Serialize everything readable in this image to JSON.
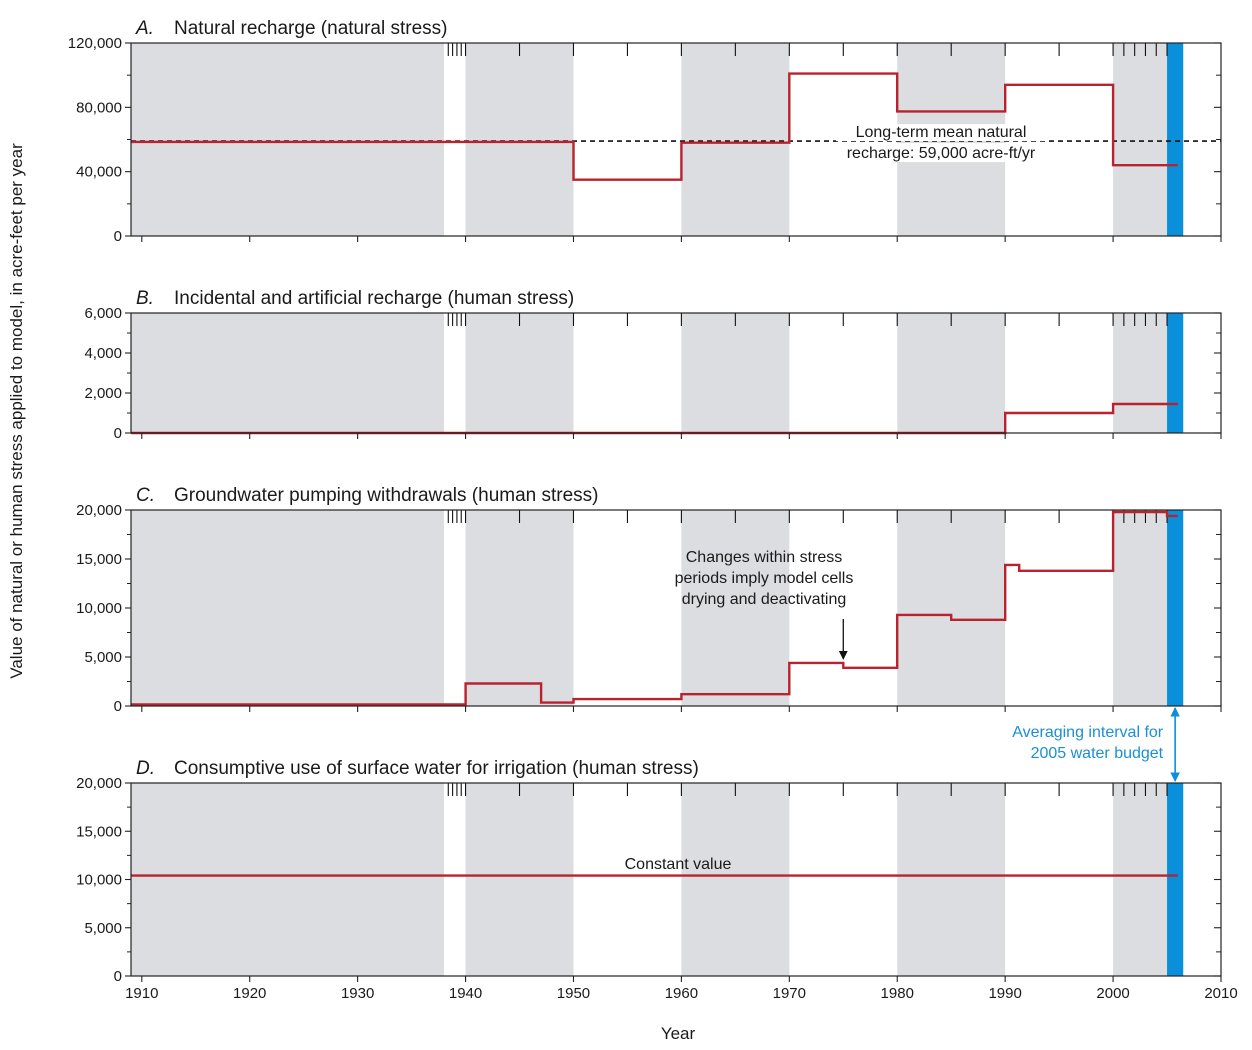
{
  "figure": {
    "ylabel": "Value of natural or human stress applied to model, in acre-feet per year",
    "xlabel": "Year",
    "x_ticks": [
      1910,
      1920,
      1930,
      1940,
      1950,
      1960,
      1970,
      1980,
      1990,
      2000,
      2010
    ],
    "xlim": [
      1909,
      2010
    ]
  },
  "colors": {
    "shade": "#dcdde0",
    "series": "#b8232f",
    "highlight": "#0a8fdb",
    "highlight_text": "#1b8fd2",
    "axis": "#222222"
  },
  "shaded_periods": [
    [
      1909,
      1938
    ],
    [
      1940,
      1950
    ],
    [
      1960,
      1970
    ],
    [
      1980,
      1990
    ],
    [
      2000,
      2005
    ]
  ],
  "averaging_interval": {
    "range": [
      2005,
      2006.5
    ],
    "label_line1": "Averaging interval for",
    "label_line2": "2005 water budget"
  },
  "stress_period_ticks": [
    1938.4,
    1938.8,
    1939.2,
    1939.6,
    1940,
    1945,
    1950,
    1955,
    1960,
    1965,
    1970,
    1975,
    1980,
    1985,
    1990,
    1995,
    2000,
    2001,
    2002,
    2003,
    2004,
    2005
  ],
  "chart_data": [
    {
      "type": "line",
      "letter": "A.",
      "title": "Natural recharge (natural stress)",
      "ylim": [
        0,
        120000
      ],
      "y_ticks": [
        0,
        40000,
        80000,
        120000
      ],
      "y_tick_labels": [
        "0",
        "40,000",
        "80,000",
        "120,000"
      ],
      "y_minor_ticks": [
        20000,
        60000,
        100000
      ],
      "series": [
        {
          "x": [
            1909,
            1950,
            1950,
            1960,
            1960,
            1970,
            1970,
            1980,
            1980,
            1990,
            1990,
            2000,
            2000,
            2006
          ],
          "y": [
            58500,
            58500,
            35000,
            35000,
            58000,
            58000,
            101000,
            101000,
            77500,
            77500,
            94000,
            94000,
            44000,
            44000
          ]
        }
      ],
      "reference_line": {
        "y": 59000,
        "label_line1": "Long-term mean natural",
        "label_line2": "recharge: 59,000 acre-ft/yr"
      }
    },
    {
      "type": "line",
      "letter": "B.",
      "title": "Incidental and artificial recharge (human stress)",
      "ylim": [
        0,
        6000
      ],
      "y_ticks": [
        0,
        2000,
        4000,
        6000
      ],
      "y_tick_labels": [
        "0",
        "2,000",
        "4,000",
        "6,000"
      ],
      "y_minor_ticks": [
        1000,
        3000,
        5000
      ],
      "series": [
        {
          "x": [
            1909,
            1990,
            1990,
            2000,
            2000,
            2006
          ],
          "y": [
            0,
            0,
            1000,
            1000,
            1450,
            1450
          ]
        }
      ]
    },
    {
      "type": "line",
      "letter": "C.",
      "title": "Groundwater pumping withdrawals (human stress)",
      "ylim": [
        0,
        20000
      ],
      "y_ticks": [
        0,
        5000,
        10000,
        15000,
        20000
      ],
      "y_tick_labels": [
        "0",
        "5,000",
        "10,000",
        "15,000",
        "20,000"
      ],
      "y_minor_ticks": [
        2500,
        7500,
        12500,
        17500
      ],
      "series": [
        {
          "x": [
            1909,
            1940,
            1940,
            1947,
            1947,
            1950,
            1950,
            1960,
            1960,
            1970,
            1970,
            1975,
            1975,
            1980,
            1980,
            1985,
            1985,
            1990,
            1990,
            1991.3,
            1991.3,
            2000,
            2000,
            2005,
            2005,
            2006
          ],
          "y": [
            150,
            150,
            2300,
            2300,
            350,
            350,
            700,
            700,
            1200,
            1200,
            4400,
            4400,
            3900,
            3900,
            9300,
            9300,
            8800,
            8800,
            14400,
            14400,
            13800,
            13800,
            19800,
            19800,
            19400,
            19400
          ]
        }
      ],
      "annotation": {
        "line1": "Changes within stress",
        "line2": "periods imply model cells",
        "line3": "drying and deactivating",
        "arrow_x": 1975,
        "arrow_y": 4700
      }
    },
    {
      "type": "line",
      "letter": "D.",
      "title": "Consumptive use of surface water for irrigation (human stress)",
      "ylim": [
        0,
        20000
      ],
      "y_ticks": [
        0,
        5000,
        10000,
        15000,
        20000
      ],
      "y_tick_labels": [
        "0",
        "5,000",
        "10,000",
        "15,000",
        "20,000"
      ],
      "y_minor_ticks": [
        2500,
        7500,
        12500,
        17500
      ],
      "series": [
        {
          "x": [
            1909,
            2006
          ],
          "y": [
            10400,
            10400
          ]
        }
      ],
      "annotation": {
        "line1": "Constant value"
      }
    }
  ]
}
